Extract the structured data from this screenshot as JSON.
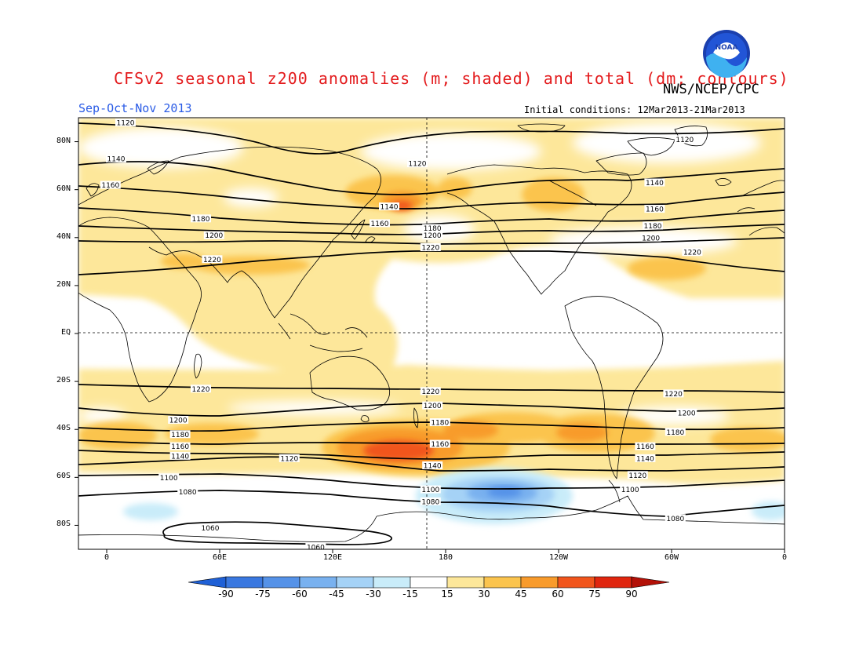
{
  "title": "CFSv2 seasonal z200 anomalies (m; shaded) and total (dm; contours)",
  "agency": "NWS/NCEP/CPC",
  "logo_text": "NOAA",
  "season": "Sep-Oct-Nov 2013",
  "initial_conditions": "Initial conditions: 12Mar2013-21Mar2013",
  "lat_labels": [
    "80N",
    "60N",
    "40N",
    "20N",
    "EQ",
    "20S",
    "40S",
    "60S",
    "80S"
  ],
  "lon_labels": [
    "0",
    "60E",
    "120E",
    "180",
    "120W",
    "60W",
    "0"
  ],
  "colorbar": {
    "levels": [
      "-90",
      "-75",
      "-60",
      "-45",
      "-30",
      "-15",
      "15",
      "30",
      "45",
      "60",
      "75",
      "90"
    ],
    "colors": [
      "#1f60d6",
      "#3a78e0",
      "#5592e8",
      "#79b1ef",
      "#a5d2f6",
      "#c9ecf9",
      "#ffffff",
      "#fde79a",
      "#fbc44e",
      "#f89b2c",
      "#f1551c",
      "#e0260f",
      "#b31108"
    ]
  },
  "contour_labels": [
    {
      "text": "1120",
      "lon": 10,
      "lat": 88
    },
    {
      "text": "1120",
      "lon": 165,
      "lat": 71
    },
    {
      "text": "1120",
      "lon": 307,
      "lat": 81
    },
    {
      "text": "1140",
      "lon": 5,
      "lat": 73
    },
    {
      "text": "1140",
      "lon": 150,
      "lat": 53
    },
    {
      "text": "1140",
      "lon": 291,
      "lat": 63
    },
    {
      "text": "1160",
      "lon": 2,
      "lat": 62
    },
    {
      "text": "1160",
      "lon": 145,
      "lat": 46
    },
    {
      "text": "1160",
      "lon": 291,
      "lat": 52
    },
    {
      "text": "1180",
      "lon": 50,
      "lat": 48
    },
    {
      "text": "1180",
      "lon": 173,
      "lat": 44
    },
    {
      "text": "1180",
      "lon": 290,
      "lat": 45
    },
    {
      "text": "1200",
      "lon": 57,
      "lat": 41
    },
    {
      "text": "1200",
      "lon": 173,
      "lat": 41
    },
    {
      "text": "1200",
      "lon": 289,
      "lat": 40
    },
    {
      "text": "1220",
      "lon": 56,
      "lat": 31
    },
    {
      "text": "1220",
      "lon": 172,
      "lat": 36
    },
    {
      "text": "1220",
      "lon": 311,
      "lat": 34
    },
    {
      "text": "1220",
      "lon": 50,
      "lat": -23
    },
    {
      "text": "1220",
      "lon": 172,
      "lat": -24
    },
    {
      "text": "1220",
      "lon": 301,
      "lat": -25
    },
    {
      "text": "1200",
      "lon": 38,
      "lat": -36
    },
    {
      "text": "1200",
      "lon": 173,
      "lat": -30
    },
    {
      "text": "1200",
      "lon": 308,
      "lat": -33
    },
    {
      "text": "1180",
      "lon": 39,
      "lat": -42
    },
    {
      "text": "1180",
      "lon": 177,
      "lat": -37
    },
    {
      "text": "1180",
      "lon": 302,
      "lat": -41
    },
    {
      "text": "1160",
      "lon": 39,
      "lat": -47
    },
    {
      "text": "1160",
      "lon": 177,
      "lat": -46
    },
    {
      "text": "1160",
      "lon": 286,
      "lat": -47
    },
    {
      "text": "1140",
      "lon": 39,
      "lat": -51
    },
    {
      "text": "1140",
      "lon": 173,
      "lat": -55
    },
    {
      "text": "1140",
      "lon": 286,
      "lat": -52
    },
    {
      "text": "1120",
      "lon": 97,
      "lat": -52
    },
    {
      "text": "1120",
      "lon": 282,
      "lat": -59
    },
    {
      "text": "1100",
      "lon": 33,
      "lat": -60
    },
    {
      "text": "1100",
      "lon": 172,
      "lat": -65
    },
    {
      "text": "1100",
      "lon": 278,
      "lat": -65
    },
    {
      "text": "1080",
      "lon": 43,
      "lat": -66
    },
    {
      "text": "1080",
      "lon": 172,
      "lat": -70
    },
    {
      "text": "1080",
      "lon": 302,
      "lat": -77
    },
    {
      "text": "1060",
      "lon": 55,
      "lat": -81
    },
    {
      "text": "1060",
      "lon": 111,
      "lat": -89
    }
  ]
}
